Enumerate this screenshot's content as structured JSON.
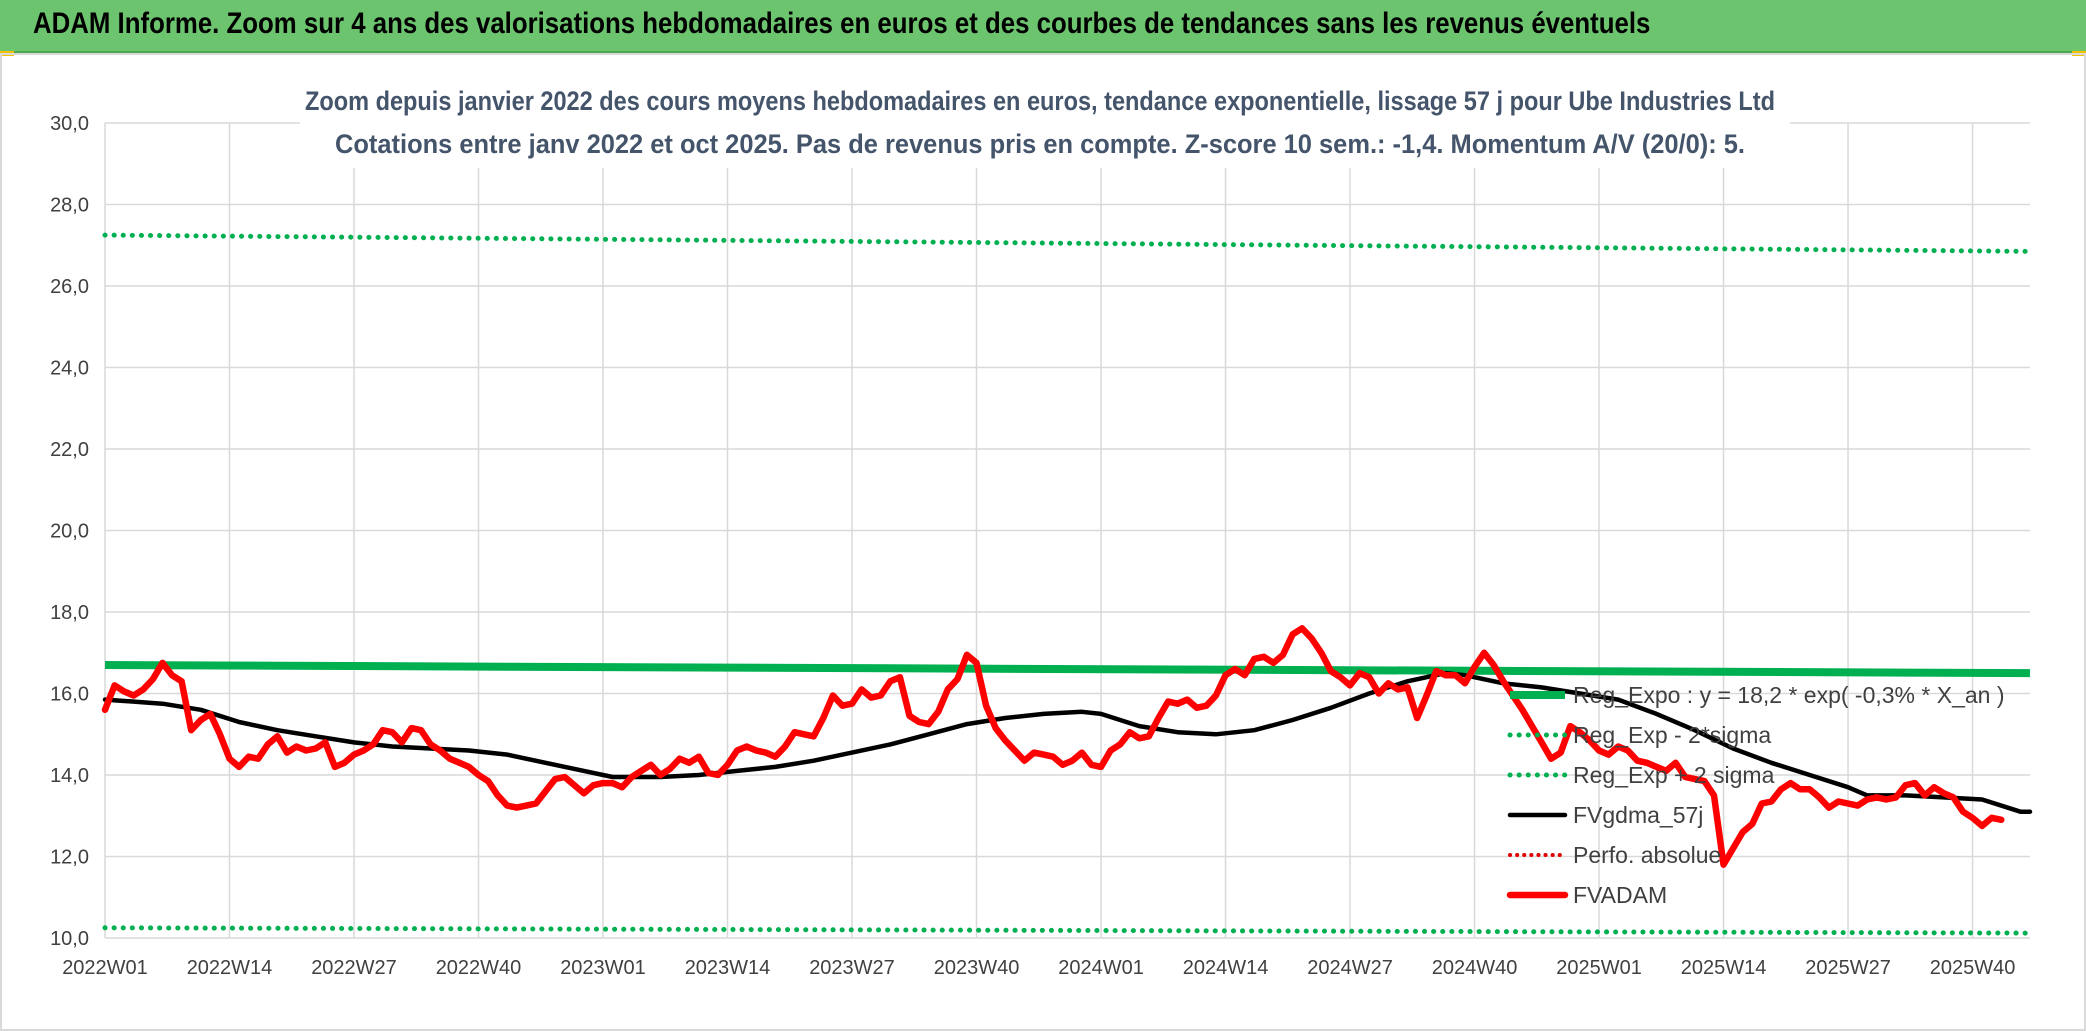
{
  "banner": {
    "title": "ADAM Informe. Zoom sur 4 ans des valorisations hebdomadaires en euros et des courbes de tendances sans les revenus éventuels"
  },
  "colors": {
    "banner_bg": "#6cc46f",
    "reg_expo": "#00b050",
    "sigma_band": "#00b050",
    "fvgdma": "#000000",
    "perfo": "#e00000",
    "fvadam": "#ff0000",
    "grid": "#d9d9d9",
    "title_text": "#44546a"
  },
  "chart_data": {
    "type": "line",
    "title": "Zoom depuis janvier 2022 des cours moyens hebdomadaires en euros, tendance exponentielle, lissage 57 j pour Ube Industries Ltd",
    "subtitle": "Cotations entre janv 2022 et oct 2025. Pas de revenus pris en compte. Z-score 10 sem.: -1,4. Momentum A/V (20/0): 5.",
    "xlabel": "",
    "ylabel": "",
    "ylim": [
      10,
      30
    ],
    "y_ticks": [
      "30,0",
      "28,0",
      "26,0",
      "24,0",
      "22,0",
      "20,0",
      "18,0",
      "16,0",
      "14,0",
      "12,0",
      "10,0"
    ],
    "y_tick_values": [
      30,
      28,
      26,
      24,
      22,
      20,
      18,
      16,
      14,
      12,
      10
    ],
    "x_ticks": [
      "2022W01",
      "2022W14",
      "2022W27",
      "2022W40",
      "2023W01",
      "2023W14",
      "2023W27",
      "2023W40",
      "2024W01",
      "2024W14",
      "2024W27",
      "2024W40",
      "2025W01",
      "2025W14",
      "2025W27",
      "2025W40"
    ],
    "x_range": [
      0,
      201
    ],
    "x_tick_step": 13,
    "grid": true,
    "legend_position": "bottom-right",
    "series": [
      {
        "name": "Reg_Expo : y = 18,2 * exp( -0,3% *  X_an )",
        "style": "solid-thick",
        "points": [
          [
            0,
            16.7
          ],
          [
            201,
            16.5
          ]
        ]
      },
      {
        "name": "Reg_Exp - 2*sigma",
        "style": "dotted",
        "points": [
          [
            0,
            10.25
          ],
          [
            201,
            10.12
          ]
        ]
      },
      {
        "name": "Reg_Exp + 2 sigma",
        "style": "dotted",
        "points": [
          [
            0,
            27.25
          ],
          [
            201,
            26.85
          ]
        ]
      },
      {
        "name": "FVgdma_57j",
        "style": "solid",
        "points": [
          [
            0,
            15.85
          ],
          [
            6,
            15.75
          ],
          [
            10,
            15.6
          ],
          [
            14,
            15.3
          ],
          [
            18,
            15.1
          ],
          [
            22,
            14.95
          ],
          [
            26,
            14.8
          ],
          [
            30,
            14.7
          ],
          [
            34,
            14.65
          ],
          [
            38,
            14.6
          ],
          [
            42,
            14.5
          ],
          [
            46,
            14.3
          ],
          [
            50,
            14.1
          ],
          [
            53,
            13.95
          ],
          [
            58,
            13.95
          ],
          [
            62,
            14.0
          ],
          [
            66,
            14.1
          ],
          [
            70,
            14.2
          ],
          [
            74,
            14.35
          ],
          [
            78,
            14.55
          ],
          [
            82,
            14.75
          ],
          [
            86,
            15.0
          ],
          [
            90,
            15.25
          ],
          [
            94,
            15.4
          ],
          [
            98,
            15.5
          ],
          [
            102,
            15.55
          ],
          [
            104,
            15.5
          ],
          [
            108,
            15.2
          ],
          [
            112,
            15.05
          ],
          [
            116,
            15.0
          ],
          [
            120,
            15.1
          ],
          [
            124,
            15.35
          ],
          [
            128,
            15.65
          ],
          [
            132,
            16.0
          ],
          [
            136,
            16.3
          ],
          [
            140,
            16.5
          ],
          [
            142,
            16.45
          ],
          [
            146,
            16.25
          ],
          [
            150,
            16.15
          ],
          [
            154,
            16.0
          ],
          [
            158,
            15.85
          ],
          [
            162,
            15.5
          ],
          [
            166,
            15.1
          ],
          [
            170,
            14.65
          ],
          [
            174,
            14.3
          ],
          [
            178,
            14.0
          ],
          [
            182,
            13.7
          ],
          [
            184,
            13.5
          ],
          [
            188,
            13.5
          ],
          [
            192,
            13.45
          ],
          [
            196,
            13.4
          ],
          [
            200,
            13.1
          ],
          [
            201,
            13.1
          ]
        ]
      },
      {
        "name": "Perfo. absolue",
        "style": "dotted-red",
        "points": []
      },
      {
        "name": "FVADAM",
        "style": "solid-thick",
        "points": [
          [
            0,
            15.6
          ],
          [
            1,
            16.2
          ],
          [
            2,
            16.05
          ],
          [
            3,
            15.95
          ],
          [
            4,
            16.1
          ],
          [
            5,
            16.35
          ],
          [
            6,
            16.75
          ],
          [
            7,
            16.45
          ],
          [
            8,
            16.3
          ],
          [
            9,
            15.1
          ],
          [
            10,
            15.35
          ],
          [
            11,
            15.5
          ],
          [
            12,
            15.0
          ],
          [
            13,
            14.4
          ],
          [
            14,
            14.2
          ],
          [
            15,
            14.45
          ],
          [
            16,
            14.4
          ],
          [
            17,
            14.75
          ],
          [
            18,
            14.95
          ],
          [
            19,
            14.55
          ],
          [
            20,
            14.7
          ],
          [
            21,
            14.6
          ],
          [
            22,
            14.65
          ],
          [
            23,
            14.8
          ],
          [
            24,
            14.2
          ],
          [
            25,
            14.3
          ],
          [
            26,
            14.5
          ],
          [
            27,
            14.6
          ],
          [
            28,
            14.75
          ],
          [
            29,
            15.1
          ],
          [
            30,
            15.05
          ],
          [
            31,
            14.8
          ],
          [
            32,
            15.15
          ],
          [
            33,
            15.1
          ],
          [
            34,
            14.75
          ],
          [
            35,
            14.6
          ],
          [
            36,
            14.4
          ],
          [
            37,
            14.3
          ],
          [
            38,
            14.2
          ],
          [
            39,
            14.0
          ],
          [
            40,
            13.85
          ],
          [
            41,
            13.5
          ],
          [
            42,
            13.25
          ],
          [
            43,
            13.2
          ],
          [
            44,
            13.25
          ],
          [
            45,
            13.3
          ],
          [
            46,
            13.6
          ],
          [
            47,
            13.9
          ],
          [
            48,
            13.95
          ],
          [
            49,
            13.75
          ],
          [
            50,
            13.55
          ],
          [
            51,
            13.75
          ],
          [
            52,
            13.8
          ],
          [
            53,
            13.8
          ],
          [
            54,
            13.7
          ],
          [
            55,
            13.95
          ],
          [
            56,
            14.1
          ],
          [
            57,
            14.25
          ],
          [
            58,
            14.0
          ],
          [
            59,
            14.15
          ],
          [
            60,
            14.4
          ],
          [
            61,
            14.3
          ],
          [
            62,
            14.45
          ],
          [
            63,
            14.05
          ],
          [
            64,
            14.0
          ],
          [
            65,
            14.25
          ],
          [
            66,
            14.6
          ],
          [
            67,
            14.7
          ],
          [
            68,
            14.6
          ],
          [
            69,
            14.55
          ],
          [
            70,
            14.45
          ],
          [
            71,
            14.7
          ],
          [
            72,
            15.05
          ],
          [
            73,
            15.0
          ],
          [
            74,
            14.95
          ],
          [
            75,
            15.4
          ],
          [
            76,
            15.95
          ],
          [
            77,
            15.7
          ],
          [
            78,
            15.75
          ],
          [
            79,
            16.1
          ],
          [
            80,
            15.9
          ],
          [
            81,
            15.95
          ],
          [
            82,
            16.3
          ],
          [
            83,
            16.4
          ],
          [
            84,
            15.45
          ],
          [
            85,
            15.3
          ],
          [
            86,
            15.25
          ],
          [
            87,
            15.55
          ],
          [
            88,
            16.1
          ],
          [
            89,
            16.35
          ],
          [
            90,
            16.95
          ],
          [
            91,
            16.75
          ],
          [
            92,
            15.7
          ],
          [
            93,
            15.15
          ],
          [
            94,
            14.85
          ],
          [
            95,
            14.6
          ],
          [
            96,
            14.35
          ],
          [
            97,
            14.55
          ],
          [
            98,
            14.5
          ],
          [
            99,
            14.45
          ],
          [
            100,
            14.25
          ],
          [
            101,
            14.35
          ],
          [
            102,
            14.55
          ],
          [
            103,
            14.25
          ],
          [
            104,
            14.2
          ],
          [
            105,
            14.6
          ],
          [
            106,
            14.75
          ],
          [
            107,
            15.05
          ],
          [
            108,
            14.9
          ],
          [
            109,
            14.95
          ],
          [
            110,
            15.4
          ],
          [
            111,
            15.8
          ],
          [
            112,
            15.75
          ],
          [
            113,
            15.85
          ],
          [
            114,
            15.65
          ],
          [
            115,
            15.7
          ],
          [
            116,
            15.95
          ],
          [
            117,
            16.45
          ],
          [
            118,
            16.6
          ],
          [
            119,
            16.45
          ],
          [
            120,
            16.85
          ],
          [
            121,
            16.9
          ],
          [
            122,
            16.75
          ],
          [
            123,
            16.95
          ],
          [
            124,
            17.45
          ],
          [
            125,
            17.6
          ],
          [
            126,
            17.35
          ],
          [
            127,
            17.0
          ],
          [
            128,
            16.55
          ],
          [
            129,
            16.4
          ],
          [
            130,
            16.2
          ],
          [
            131,
            16.5
          ],
          [
            132,
            16.4
          ],
          [
            133,
            16.0
          ],
          [
            134,
            16.25
          ],
          [
            135,
            16.1
          ],
          [
            136,
            16.15
          ],
          [
            137,
            15.4
          ],
          [
            138,
            15.95
          ],
          [
            139,
            16.55
          ],
          [
            140,
            16.45
          ],
          [
            141,
            16.45
          ],
          [
            142,
            16.25
          ],
          [
            143,
            16.65
          ],
          [
            144,
            17.0
          ],
          [
            145,
            16.7
          ],
          [
            146,
            16.3
          ],
          [
            147,
            15.95
          ],
          [
            148,
            15.6
          ],
          [
            149,
            15.2
          ],
          [
            150,
            14.8
          ],
          [
            151,
            14.4
          ],
          [
            152,
            14.55
          ],
          [
            153,
            15.2
          ],
          [
            154,
            15.05
          ],
          [
            155,
            14.85
          ],
          [
            156,
            14.6
          ],
          [
            157,
            14.5
          ],
          [
            158,
            14.7
          ],
          [
            159,
            14.6
          ],
          [
            160,
            14.35
          ],
          [
            161,
            14.3
          ],
          [
            162,
            14.2
          ],
          [
            163,
            14.1
          ],
          [
            164,
            14.3
          ],
          [
            165,
            13.95
          ],
          [
            166,
            13.9
          ],
          [
            167,
            13.85
          ],
          [
            168,
            13.5
          ],
          [
            169,
            11.8
          ],
          [
            170,
            12.2
          ],
          [
            171,
            12.6
          ],
          [
            172,
            12.8
          ],
          [
            173,
            13.3
          ],
          [
            174,
            13.35
          ],
          [
            175,
            13.65
          ],
          [
            176,
            13.8
          ],
          [
            177,
            13.65
          ],
          [
            178,
            13.65
          ],
          [
            179,
            13.45
          ],
          [
            180,
            13.2
          ],
          [
            181,
            13.35
          ],
          [
            182,
            13.3
          ],
          [
            183,
            13.25
          ],
          [
            184,
            13.4
          ],
          [
            185,
            13.45
          ],
          [
            186,
            13.4
          ],
          [
            187,
            13.45
          ],
          [
            188,
            13.75
          ],
          [
            189,
            13.8
          ],
          [
            190,
            13.5
          ],
          [
            191,
            13.7
          ],
          [
            192,
            13.55
          ],
          [
            193,
            13.45
          ],
          [
            194,
            13.1
          ],
          [
            195,
            12.95
          ],
          [
            196,
            12.75
          ],
          [
            197,
            12.95
          ],
          [
            198,
            12.9
          ]
        ]
      }
    ]
  }
}
